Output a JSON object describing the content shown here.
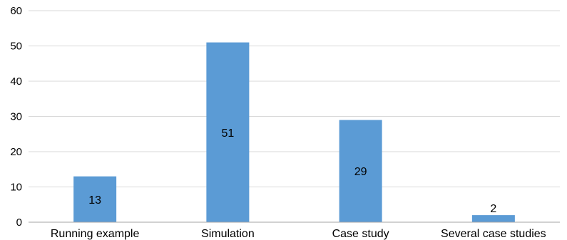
{
  "chart_data": {
    "type": "bar",
    "title": "",
    "xlabel": "",
    "ylabel": "",
    "categories": [
      "Running example",
      "Simulation",
      "Case study",
      "Several case studies"
    ],
    "values": [
      13,
      51,
      29,
      2
    ],
    "data_labels": [
      "13",
      "51",
      "29",
      "2"
    ],
    "ylim": [
      0,
      60
    ],
    "yticks": [
      0,
      10,
      20,
      30,
      40,
      50,
      60
    ],
    "ytick_labels": [
      "0",
      "10",
      "20",
      "30",
      "40",
      "50",
      "60"
    ],
    "grid": true,
    "legend": "none",
    "bar_color": "#5b9bd5",
    "grid_color": "#d9d9d9",
    "axis_color": "#a6a6a6"
  }
}
